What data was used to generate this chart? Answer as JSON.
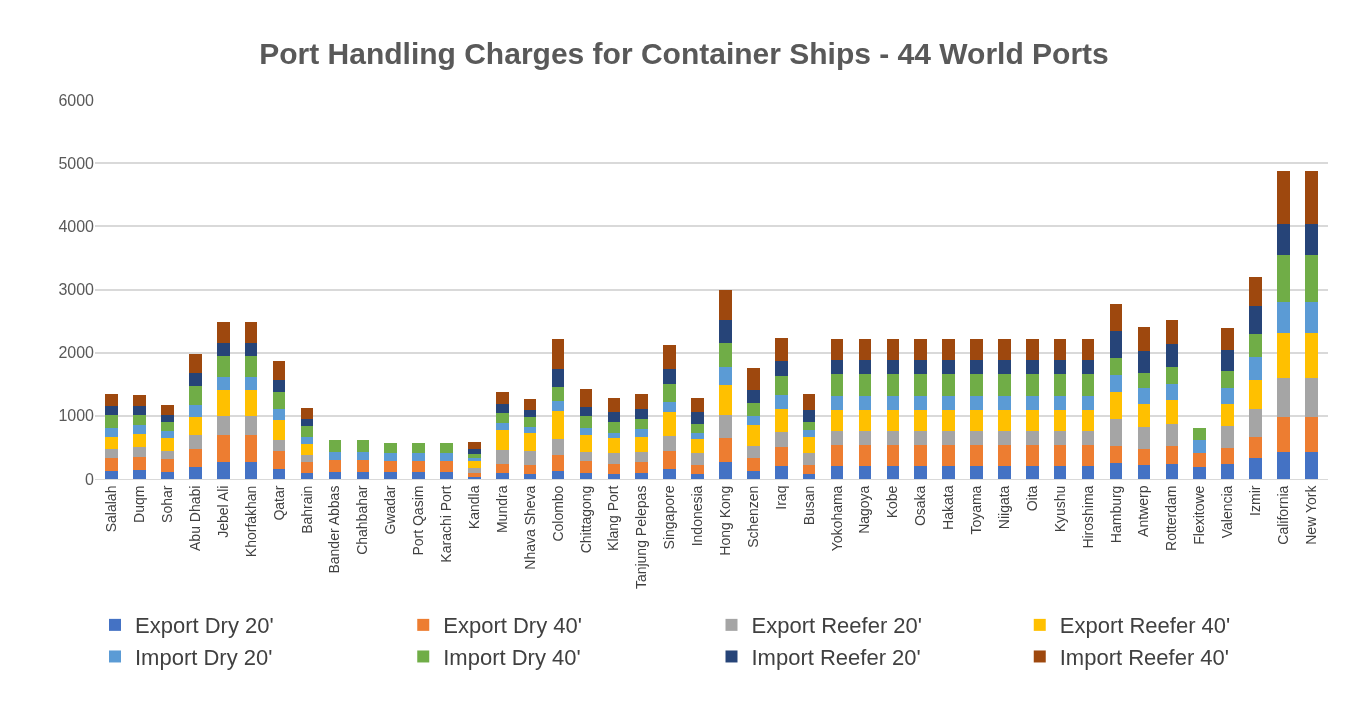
{
  "chart_data": {
    "type": "bar",
    "title": "Port Handling Charges for Container Ships - 44 World Ports",
    "stacked": true,
    "categories": [
      "Salalah",
      "Duqm",
      "Sohar",
      "Abu Dhabi",
      "Jebel Ali",
      "Khorfakhan",
      "Qatar",
      "Bahrain",
      "Bander Abbas",
      "Chahbahar",
      "Gwadar",
      "Port Qasim",
      "Karachi Port",
      "Kandla",
      "Mundra",
      "Nhava Sheva",
      "Colombo",
      "Chittagong",
      "Klang Port",
      "Tanjung Pelepas",
      "Singapore",
      "Indonesia",
      "Hong Kong",
      "Schenzen",
      "Iraq",
      "Busan",
      "Yokohama",
      "Nagoya",
      "Kobe",
      "Osaka",
      "Hakata",
      "Toyama",
      "Niigata",
      "Oita",
      "Kyushu",
      "Hiroshima",
      "Hamburg",
      "Antwerp",
      "Rotterdam",
      "Flexitowe",
      "Valencia",
      "Izmir",
      "California",
      "New York"
    ],
    "series": [
      {
        "name": "Export Dry 20'",
        "color": "#4472c4",
        "values": [
          130,
          145,
          115,
          195,
          275,
          275,
          165,
          90,
          110,
          110,
          115,
          115,
          115,
          25,
          95,
          80,
          130,
          95,
          80,
          95,
          155,
          80,
          265,
          120,
          200,
          80,
          210,
          210,
          210,
          210,
          210,
          210,
          210,
          210,
          210,
          210,
          255,
          225,
          245,
          195,
          235,
          325,
          435,
          435
        ]
      },
      {
        "name": "Export Dry 40'",
        "color": "#ed7d31",
        "values": [
          195,
          210,
          195,
          285,
          425,
          425,
          275,
          175,
          185,
          185,
          165,
          165,
          165,
          75,
          150,
          145,
          245,
          185,
          165,
          170,
          285,
          145,
          390,
          220,
          305,
          145,
          330,
          330,
          330,
          330,
          330,
          330,
          330,
          330,
          330,
          330,
          265,
          250,
          270,
          215,
          255,
          335,
          550,
          550
        ]
      },
      {
        "name": "Export Reefer 20'",
        "color": "#a5a5a5",
        "values": [
          155,
          150,
          140,
          220,
          295,
          295,
          185,
          115,
          0,
          0,
          0,
          0,
          0,
          80,
          220,
          215,
          255,
          145,
          160,
          160,
          240,
          180,
          355,
          185,
          240,
          180,
          220,
          220,
          220,
          220,
          220,
          220,
          220,
          220,
          220,
          220,
          430,
          355,
          360,
          0,
          350,
          455,
          615,
          615
        ]
      },
      {
        "name": "Export Reefer 40'",
        "color": "#ffc000",
        "values": [
          190,
          210,
          195,
          280,
          410,
          410,
          305,
          170,
          0,
          0,
          0,
          0,
          0,
          105,
          315,
          290,
          450,
          275,
          240,
          245,
          375,
          225,
          475,
          330,
          365,
          260,
          340,
          340,
          340,
          340,
          340,
          340,
          340,
          340,
          340,
          340,
          430,
          360,
          380,
          0,
          355,
          450,
          705,
          705
        ]
      },
      {
        "name": "Import Dry 20'",
        "color": "#5b9bd5",
        "values": [
          145,
          135,
          110,
          195,
          210,
          210,
          175,
          115,
          130,
          130,
          125,
          125,
          125,
          45,
          110,
          95,
          150,
          110,
          90,
          115,
          160,
          105,
          285,
          140,
          215,
          105,
          220,
          220,
          220,
          220,
          220,
          220,
          220,
          220,
          220,
          220,
          265,
          245,
          250,
          205,
          245,
          360,
          490,
          490
        ]
      },
      {
        "name": "Import Dry 40'",
        "color": "#70ad47",
        "values": [
          195,
          170,
          150,
          305,
          330,
          330,
          275,
          180,
          190,
          190,
          165,
          165,
          165,
          70,
          160,
          155,
          230,
          185,
          170,
          160,
          295,
          140,
          385,
          215,
          300,
          135,
          335,
          335,
          335,
          335,
          335,
          335,
          335,
          335,
          335,
          335,
          275,
          245,
          270,
          200,
          265,
          365,
          750,
          750
        ]
      },
      {
        "name": "Import Reefer 20'",
        "color": "#264478",
        "values": [
          150,
          140,
          110,
          200,
          205,
          205,
          185,
          100,
          0,
          0,
          0,
          0,
          0,
          70,
          135,
          110,
          280,
          150,
          160,
          170,
          235,
          180,
          360,
          200,
          245,
          180,
          225,
          225,
          225,
          225,
          225,
          225,
          225,
          225,
          225,
          225,
          420,
          350,
          370,
          0,
          340,
          450,
          485,
          485
        ]
      },
      {
        "name": "Import Reefer 40'",
        "color": "#9e480e",
        "values": [
          190,
          170,
          155,
          300,
          330,
          330,
          305,
          180,
          0,
          0,
          0,
          0,
          0,
          110,
          185,
          175,
          470,
          275,
          220,
          235,
          375,
          225,
          475,
          345,
          365,
          265,
          330,
          330,
          330,
          330,
          330,
          330,
          330,
          330,
          330,
          330,
          430,
          370,
          365,
          0,
          350,
          465,
          845,
          845
        ]
      }
    ],
    "ylim": [
      0,
      6000
    ],
    "yticks": [
      0,
      1000,
      2000,
      3000,
      4000,
      5000,
      6000
    ],
    "grid": "y",
    "legend": "bottom"
  }
}
